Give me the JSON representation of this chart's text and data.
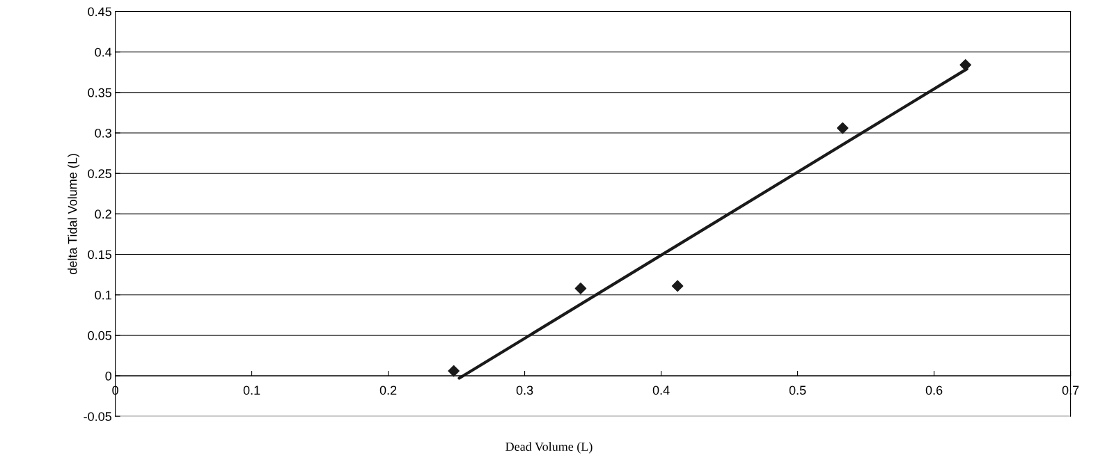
{
  "chart_data": {
    "type": "scatter",
    "xlabel": "Dead Volume (L)",
    "ylabel": "delta Tidal Volume (L)",
    "xlim": [
      0,
      0.7
    ],
    "xticks": [
      0,
      0.1,
      0.2,
      0.3,
      0.4,
      0.5,
      0.6,
      0.7
    ],
    "ylim": [
      -0.05,
      0.45
    ],
    "yticks": [
      -0.05,
      0,
      0.05,
      0.1,
      0.15,
      0.2,
      0.25,
      0.3,
      0.35,
      0.4,
      0.45
    ],
    "grid": "y",
    "series": [
      {
        "marker": "diamond",
        "color": "#1a1a1a",
        "x": [
          0.248,
          0.341,
          0.412,
          0.533,
          0.623
        ],
        "values": [
          0.006,
          0.108,
          0.111,
          0.306,
          0.384
        ]
      },
      {
        "type": "line",
        "color": "#1a1a1a",
        "line_style": "solid",
        "x": [
          0.252,
          0.624
        ],
        "values": [
          -0.003,
          0.379
        ]
      }
    ]
  }
}
